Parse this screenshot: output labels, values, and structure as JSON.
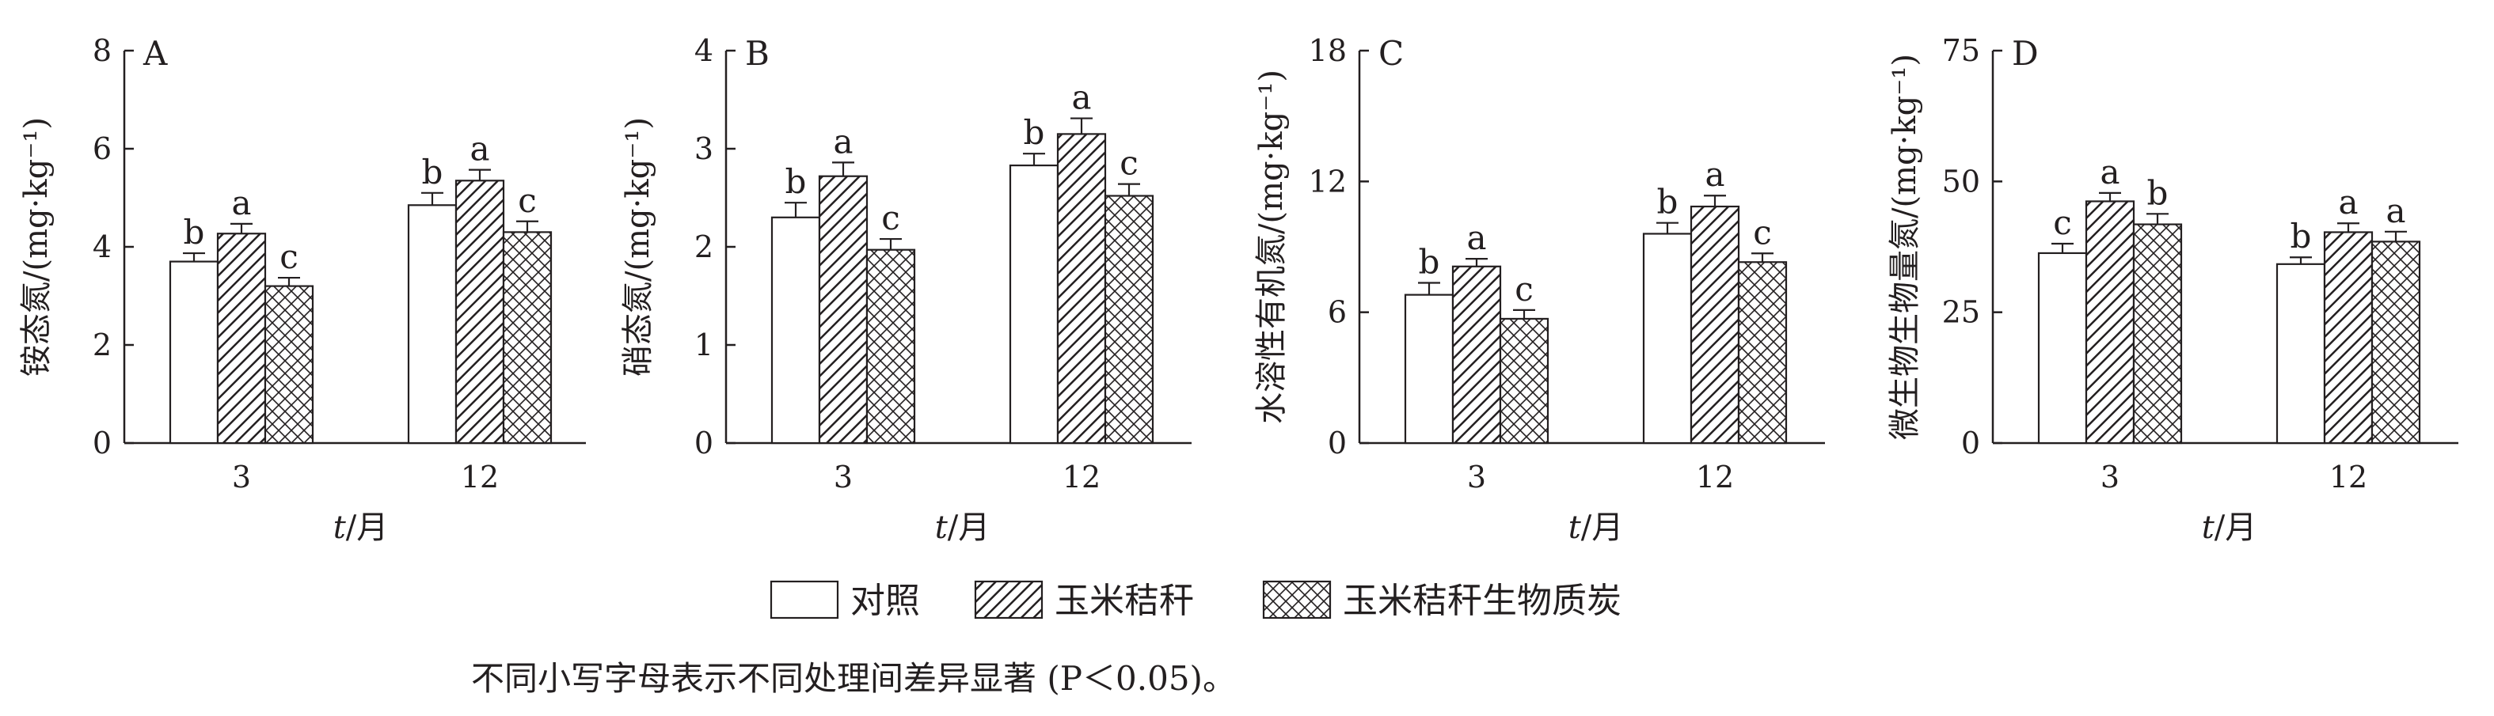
{
  "chart_data": [
    {
      "type": "bar",
      "panel": "A",
      "ylabel": "铵态氮/(mg·kg⁻¹)",
      "xlabel": "t/月",
      "xlabel_var": "t",
      "xlabel_unit": "/月",
      "categories": [
        "3",
        "12"
      ],
      "ylim": [
        0,
        8
      ],
      "yticks": [
        0,
        2,
        4,
        6,
        8
      ],
      "series": [
        {
          "name": "对照",
          "values": [
            3.7,
            4.85
          ],
          "errors": [
            0.17,
            0.25
          ],
          "letters": [
            "b",
            "b"
          ]
        },
        {
          "name": "玉米秸秆",
          "values": [
            4.27,
            5.35
          ],
          "errors": [
            0.2,
            0.22
          ],
          "letters": [
            "a",
            "a"
          ]
        },
        {
          "name": "玉米秸秆生物质炭",
          "values": [
            3.2,
            4.3
          ],
          "errors": [
            0.17,
            0.22
          ],
          "letters": [
            "c",
            "c"
          ]
        }
      ]
    },
    {
      "type": "bar",
      "panel": "B",
      "ylabel": "硝态氮/(mg·kg⁻¹)",
      "xlabel": "t/月",
      "xlabel_var": "t",
      "xlabel_unit": "/月",
      "categories": [
        "3",
        "12"
      ],
      "ylim": [
        0,
        4
      ],
      "yticks": [
        0,
        1,
        2,
        3,
        4
      ],
      "series": [
        {
          "name": "对照",
          "values": [
            2.3,
            2.83
          ],
          "errors": [
            0.15,
            0.12
          ],
          "letters": [
            "b",
            "b"
          ]
        },
        {
          "name": "玉米秸秆",
          "values": [
            2.72,
            3.15
          ],
          "errors": [
            0.14,
            0.16
          ],
          "letters": [
            "a",
            "a"
          ]
        },
        {
          "name": "玉米秸秆生物质炭",
          "values": [
            1.97,
            2.52
          ],
          "errors": [
            0.11,
            0.12
          ],
          "letters": [
            "c",
            "c"
          ]
        }
      ]
    },
    {
      "type": "bar",
      "panel": "C",
      "ylabel": "水溶性有机氮/(mg·kg⁻¹)",
      "xlabel": "t/月",
      "xlabel_var": "t",
      "xlabel_unit": "/月",
      "categories": [
        "3",
        "12"
      ],
      "ylim": [
        0,
        18
      ],
      "yticks": [
        0,
        6,
        12,
        18
      ],
      "series": [
        {
          "name": "对照",
          "values": [
            6.8,
            9.6
          ],
          "errors": [
            0.55,
            0.5
          ],
          "letters": [
            "b",
            "b"
          ]
        },
        {
          "name": "玉米秸秆",
          "values": [
            8.1,
            10.85
          ],
          "errors": [
            0.35,
            0.5
          ],
          "letters": [
            "a",
            "a"
          ]
        },
        {
          "name": "玉米秸秆生物质炭",
          "values": [
            5.7,
            8.3
          ],
          "errors": [
            0.4,
            0.4
          ],
          "letters": [
            "c",
            "c"
          ]
        }
      ]
    },
    {
      "type": "bar",
      "panel": "D",
      "ylabel": "微生物生物量氮/(mg·kg⁻¹)",
      "xlabel": "t/月",
      "xlabel_var": "t",
      "xlabel_unit": "/月",
      "categories": [
        "3",
        "12"
      ],
      "ylim": [
        0,
        75
      ],
      "yticks": [
        0,
        25,
        50,
        75
      ],
      "series": [
        {
          "name": "对照",
          "values": [
            36.3,
            34.2
          ],
          "errors": [
            1.8,
            1.3
          ],
          "letters": [
            "c",
            "b"
          ]
        },
        {
          "name": "玉米秸秆",
          "values": [
            46.2,
            40.3
          ],
          "errors": [
            1.6,
            1.7
          ],
          "letters": [
            "a",
            "a"
          ]
        },
        {
          "name": "玉米秸秆生物质炭",
          "values": [
            41.8,
            38.5
          ],
          "errors": [
            2.0,
            1.9
          ],
          "letters": [
            "b",
            "a"
          ]
        }
      ]
    }
  ],
  "legend": {
    "placement": "bottom-center",
    "items": [
      {
        "label": "对照",
        "pattern": "white"
      },
      {
        "label": "玉米秸秆",
        "pattern": "diagonal-hatch"
      },
      {
        "label": "玉米秸秆生物质炭",
        "pattern": "cross-hatch"
      }
    ]
  },
  "note": "不同小写字母表示不同处理间差异显著 (P＜0.05)。",
  "colors": {
    "ink": "#231f20",
    "background": "#ffffff"
  }
}
